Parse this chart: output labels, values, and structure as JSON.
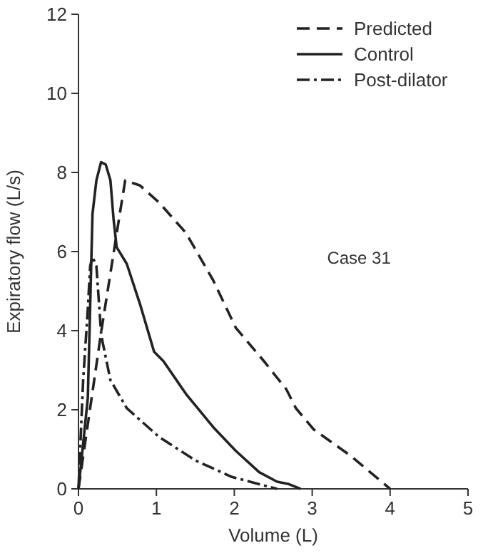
{
  "chart_data": {
    "type": "line",
    "xlabel": "Volume (L)",
    "ylabel": "Expiratory flow (L/s)",
    "xlim": [
      0,
      5
    ],
    "xticks": [
      0,
      1,
      2,
      3,
      4,
      5
    ],
    "ylim": [
      0,
      12
    ],
    "yticks": [
      0,
      2,
      4,
      6,
      8,
      10,
      12
    ],
    "grid": false,
    "legend": "top right",
    "marker": "none",
    "annotations": [
      "Case 31"
    ],
    "series": [
      {
        "name": "Predicted",
        "color": "#222222",
        "line_style": "dashed",
        "x": [
          0,
          0.29,
          0.53,
          0.6,
          0.79,
          1.03,
          1.38,
          1.73,
          2.02,
          2.38,
          2.67,
          2.79,
          3.02,
          3.49,
          4.0
        ],
        "values": [
          0,
          3.95,
          6.95,
          7.8,
          7.67,
          7.25,
          6.47,
          5.27,
          4.07,
          3.23,
          2.51,
          2.04,
          1.5,
          0.84,
          0
        ]
      },
      {
        "name": "Control",
        "color": "#222222",
        "line_style": "solid",
        "x": [
          0,
          0.12,
          0.18,
          0.23,
          0.29,
          0.35,
          0.41,
          0.45,
          0.49,
          0.62,
          0.79,
          0.97,
          1.09,
          1.38,
          1.73,
          2.02,
          2.32,
          2.55,
          2.7,
          2.85
        ],
        "values": [
          0,
          2.3,
          6.95,
          7.8,
          8.26,
          8.2,
          7.8,
          6.83,
          6.11,
          5.69,
          4.67,
          3.47,
          3.23,
          2.4,
          1.56,
          0.96,
          0.42,
          0.18,
          0.12,
          0
        ]
      },
      {
        "name": "Post-dilator",
        "color": "#222222",
        "line_style": "dashdot",
        "x": [
          0,
          0.06,
          0.12,
          0.15,
          0.18,
          0.23,
          0.29,
          0.31,
          0.41,
          0.62,
          1.03,
          1.5,
          1.97,
          2.55
        ],
        "values": [
          0,
          2.75,
          4.55,
          5.63,
          5.87,
          5.63,
          3.95,
          3.71,
          2.75,
          2.04,
          1.32,
          0.72,
          0.3,
          0
        ]
      }
    ]
  }
}
